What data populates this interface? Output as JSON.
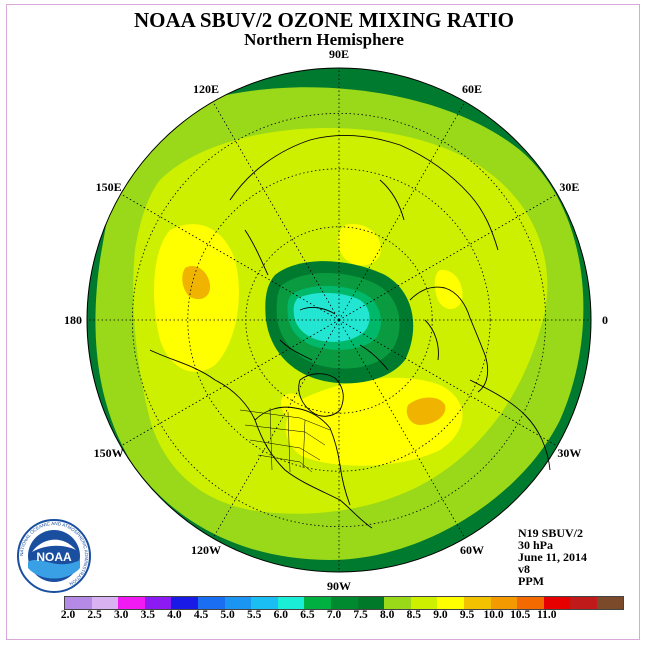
{
  "header": {
    "title": "NOAA SBUV/2 OZONE MIXING RATIO",
    "subtitle": "Northern Hemisphere"
  },
  "map": {
    "longitude_labels": [
      {
        "text": "90E",
        "lon": 90
      },
      {
        "text": "60E",
        "lon": 60
      },
      {
        "text": "30E",
        "lon": 30
      },
      {
        "text": "0",
        "lon": 0
      },
      {
        "text": "30W",
        "lon": -30
      },
      {
        "text": "60W",
        "lon": -60
      },
      {
        "text": "90W",
        "lon": -90
      },
      {
        "text": "120W",
        "lon": -120
      },
      {
        "text": "150W",
        "lon": -150
      },
      {
        "text": "180",
        "lon": 180
      },
      {
        "text": "150E",
        "lon": 150
      },
      {
        "text": "120E",
        "lon": 120
      }
    ],
    "colors": {
      "background_fill": "#007a2e",
      "ring_outer": "#3aa62c",
      "fill_7_5": "#99d91a",
      "fill_8_0": "#ccf000",
      "fill_8_5": "#ffff00",
      "fill_9_0": "#f0b400",
      "fill_6_5": "#0a9a40",
      "fill_6_0": "#00b86a",
      "fill_5_5": "#22e6d2"
    }
  },
  "info": {
    "instrument": "N19 SBUV/2",
    "level": "30 hPa",
    "date": "June 11, 2014",
    "version": "v8",
    "units": "PPM"
  },
  "colorbar": {
    "ticks": [
      "2.0",
      "2.5",
      "3.0",
      "3.5",
      "4.0",
      "4.5",
      "5.0",
      "5.5",
      "6.0",
      "6.5",
      "7.0",
      "7.5",
      "8.0",
      "8.5",
      "9.0",
      "9.5",
      "10.0",
      "10.5",
      "11.0"
    ],
    "colors": [
      "#b58ae6",
      "#d9b2f2",
      "#f21af2",
      "#8c1af2",
      "#1a1ae6",
      "#1a6ef2",
      "#1a96f2",
      "#1abef2",
      "#1aeed6",
      "#00b040",
      "#008a30",
      "#007a28",
      "#99d91a",
      "#ccf000",
      "#ffff00",
      "#f2c200",
      "#f29a00",
      "#f26a00",
      "#e60000",
      "#c01a1a",
      "#7a4a2a"
    ]
  },
  "logo": {
    "text": "NOAA",
    "ring_text": "NATIONAL OCEANIC AND ATMOSPHERIC ADMINISTRATION"
  }
}
